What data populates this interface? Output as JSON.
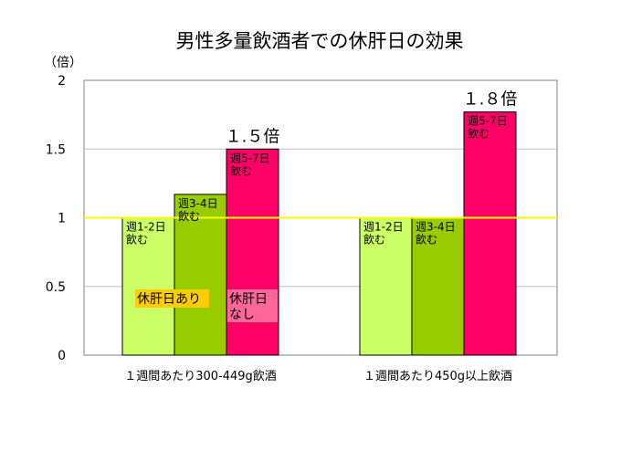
{
  "chart_data": {
    "type": "bar",
    "title": "男性多量飲酒者での休肝日の効果",
    "y_unit": "（倍）",
    "ylim": [
      0,
      2
    ],
    "yticks": [
      "0",
      "0.5",
      "1",
      "1.5",
      "2"
    ],
    "reference_line": 1,
    "grid": true,
    "categories": [
      "１週間あたり300-449g飲酒",
      "１週間あたり450g以上飲酒"
    ],
    "series": [
      {
        "name": "週1-2日\n飲む",
        "values": [
          1.0,
          1.0
        ]
      },
      {
        "name": "週3-4日\n飲む",
        "values": [
          1.17,
          1.0
        ]
      },
      {
        "name": "週5-7日\n飲む",
        "values": [
          1.5,
          1.77
        ]
      }
    ],
    "annotations": [
      "１.５倍",
      "１.８倍"
    ],
    "group_labels": {
      "rest_day": "休肝日あり",
      "no_rest_day": "休肝日\nなし"
    },
    "colors": {
      "series": [
        "#ccff66",
        "#99cc00",
        "#ff0066"
      ],
      "reference_line": "#ffff00",
      "rest_day_label_bg": "#ffcc00",
      "no_rest_day_label_bg": "#ff6699",
      "grid": "#c0c0c0",
      "plot_border": "#808080"
    }
  }
}
